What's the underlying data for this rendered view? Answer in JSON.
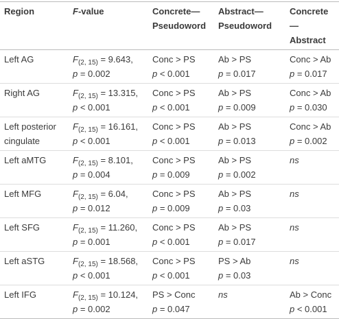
{
  "table": {
    "header": [
      [
        [
          {
            "t": "Region"
          }
        ]
      ],
      [
        [
          {
            "t": "F",
            "i": true
          },
          {
            "t": "-value"
          }
        ]
      ],
      [
        [
          {
            "t": "Concrete—"
          }
        ],
        [
          {
            "t": "Pseudoword"
          }
        ]
      ],
      [
        [
          {
            "t": "Abstract—"
          }
        ],
        [
          {
            "t": "Pseudoword"
          }
        ]
      ],
      [
        [
          {
            "t": "Concrete—"
          }
        ],
        [
          {
            "t": "Abstract"
          }
        ]
      ]
    ],
    "rows": [
      [
        [
          [
            {
              "t": "Left AG"
            }
          ]
        ],
        [
          [
            {
              "t": "F",
              "i": true
            },
            {
              "t": "(2, 15)",
              "sub": true
            },
            {
              "t": " = 9.643,"
            }
          ],
          [
            {
              "t": "p",
              "i": true
            },
            {
              "t": " = 0.002"
            }
          ]
        ],
        [
          [
            {
              "t": "Conc > PS"
            }
          ],
          [
            {
              "t": "p",
              "i": true
            },
            {
              "t": " < 0.001"
            }
          ]
        ],
        [
          [
            {
              "t": "Ab > PS"
            }
          ],
          [
            {
              "t": "p",
              "i": true
            },
            {
              "t": " = 0.017"
            }
          ]
        ],
        [
          [
            {
              "t": "Conc > Ab"
            }
          ],
          [
            {
              "t": "p",
              "i": true
            },
            {
              "t": " = 0.017"
            }
          ]
        ]
      ],
      [
        [
          [
            {
              "t": "Right AG"
            }
          ]
        ],
        [
          [
            {
              "t": "F",
              "i": true
            },
            {
              "t": "(2, 15)",
              "sub": true
            },
            {
              "t": " = 13.315,"
            }
          ],
          [
            {
              "t": "p",
              "i": true
            },
            {
              "t": " < 0.001"
            }
          ]
        ],
        [
          [
            {
              "t": "Conc > PS"
            }
          ],
          [
            {
              "t": "p",
              "i": true
            },
            {
              "t": " < 0.001"
            }
          ]
        ],
        [
          [
            {
              "t": "Ab > PS"
            }
          ],
          [
            {
              "t": "p",
              "i": true
            },
            {
              "t": " = 0.009"
            }
          ]
        ],
        [
          [
            {
              "t": "Conc > Ab"
            }
          ],
          [
            {
              "t": "p",
              "i": true
            },
            {
              "t": " = 0.030"
            }
          ]
        ]
      ],
      [
        [
          [
            {
              "t": "Left posterior"
            }
          ],
          [
            {
              "t": "cingulate"
            }
          ]
        ],
        [
          [
            {
              "t": "F",
              "i": true
            },
            {
              "t": "(2, 15)",
              "sub": true
            },
            {
              "t": " = 16.161,"
            }
          ],
          [
            {
              "t": "p",
              "i": true
            },
            {
              "t": " < 0.001"
            }
          ]
        ],
        [
          [
            {
              "t": "Conc > PS"
            }
          ],
          [
            {
              "t": "p",
              "i": true
            },
            {
              "t": " < 0.001"
            }
          ]
        ],
        [
          [
            {
              "t": "Ab > PS"
            }
          ],
          [
            {
              "t": "p",
              "i": true
            },
            {
              "t": " = 0.013"
            }
          ]
        ],
        [
          [
            {
              "t": "Conc > Ab"
            }
          ],
          [
            {
              "t": "p",
              "i": true
            },
            {
              "t": " = 0.002"
            }
          ]
        ]
      ],
      [
        [
          [
            {
              "t": "Left aMTG"
            }
          ]
        ],
        [
          [
            {
              "t": "F",
              "i": true
            },
            {
              "t": "(2, 15)",
              "sub": true
            },
            {
              "t": " = 8.101,"
            }
          ],
          [
            {
              "t": "p",
              "i": true
            },
            {
              "t": " = 0.004"
            }
          ]
        ],
        [
          [
            {
              "t": "Conc > PS"
            }
          ],
          [
            {
              "t": "p",
              "i": true
            },
            {
              "t": " = 0.009"
            }
          ]
        ],
        [
          [
            {
              "t": "Ab > PS"
            }
          ],
          [
            {
              "t": "p",
              "i": true
            },
            {
              "t": " = 0.002"
            }
          ]
        ],
        [
          [
            {
              "t": "ns",
              "i": true
            }
          ]
        ]
      ],
      [
        [
          [
            {
              "t": "Left MFG"
            }
          ]
        ],
        [
          [
            {
              "t": "F",
              "i": true
            },
            {
              "t": "(2, 15)",
              "sub": true
            },
            {
              "t": " = 6.04,"
            }
          ],
          [
            {
              "t": "p",
              "i": true
            },
            {
              "t": " = 0.012"
            }
          ]
        ],
        [
          [
            {
              "t": "Conc > PS"
            }
          ],
          [
            {
              "t": "p",
              "i": true
            },
            {
              "t": " = 0.009"
            }
          ]
        ],
        [
          [
            {
              "t": "Ab > PS"
            }
          ],
          [
            {
              "t": "p",
              "i": true
            },
            {
              "t": " = 0.03"
            }
          ]
        ],
        [
          [
            {
              "t": "ns",
              "i": true
            }
          ]
        ]
      ],
      [
        [
          [
            {
              "t": "Left SFG"
            }
          ]
        ],
        [
          [
            {
              "t": "F",
              "i": true
            },
            {
              "t": "(2, 15)",
              "sub": true
            },
            {
              "t": " = 11.260,"
            }
          ],
          [
            {
              "t": "p",
              "i": true
            },
            {
              "t": " = 0.001"
            }
          ]
        ],
        [
          [
            {
              "t": "Conc > PS"
            }
          ],
          [
            {
              "t": "p",
              "i": true
            },
            {
              "t": " < 0.001"
            }
          ]
        ],
        [
          [
            {
              "t": "Ab > PS"
            }
          ],
          [
            {
              "t": "p",
              "i": true
            },
            {
              "t": " = 0.017"
            }
          ]
        ],
        [
          [
            {
              "t": "ns",
              "i": true
            }
          ]
        ]
      ],
      [
        [
          [
            {
              "t": "Left aSTG"
            }
          ]
        ],
        [
          [
            {
              "t": "F",
              "i": true
            },
            {
              "t": "(2, 15)",
              "sub": true
            },
            {
              "t": " = 18.568,"
            }
          ],
          [
            {
              "t": "p",
              "i": true
            },
            {
              "t": " < 0.001"
            }
          ]
        ],
        [
          [
            {
              "t": "Conc > PS"
            }
          ],
          [
            {
              "t": "p",
              "i": true
            },
            {
              "t": " < 0.001"
            }
          ]
        ],
        [
          [
            {
              "t": "PS > Ab"
            }
          ],
          [
            {
              "t": "p",
              "i": true
            },
            {
              "t": " = 0.03"
            }
          ]
        ],
        [
          [
            {
              "t": "ns",
              "i": true
            }
          ]
        ]
      ],
      [
        [
          [
            {
              "t": "Left IFG"
            }
          ]
        ],
        [
          [
            {
              "t": "F",
              "i": true
            },
            {
              "t": "(2, 15)",
              "sub": true
            },
            {
              "t": " = 10.124,"
            }
          ],
          [
            {
              "t": "p",
              "i": true
            },
            {
              "t": " = 0.002"
            }
          ]
        ],
        [
          [
            {
              "t": "PS > Conc"
            }
          ],
          [
            {
              "t": "p",
              "i": true
            },
            {
              "t": " = 0.047"
            }
          ]
        ],
        [
          [
            {
              "t": "ns",
              "i": true
            }
          ]
        ],
        [
          [
            {
              "t": "Ab > Conc"
            }
          ],
          [
            {
              "t": "p",
              "i": true
            },
            {
              "t": " < 0.001"
            }
          ]
        ]
      ]
    ]
  }
}
